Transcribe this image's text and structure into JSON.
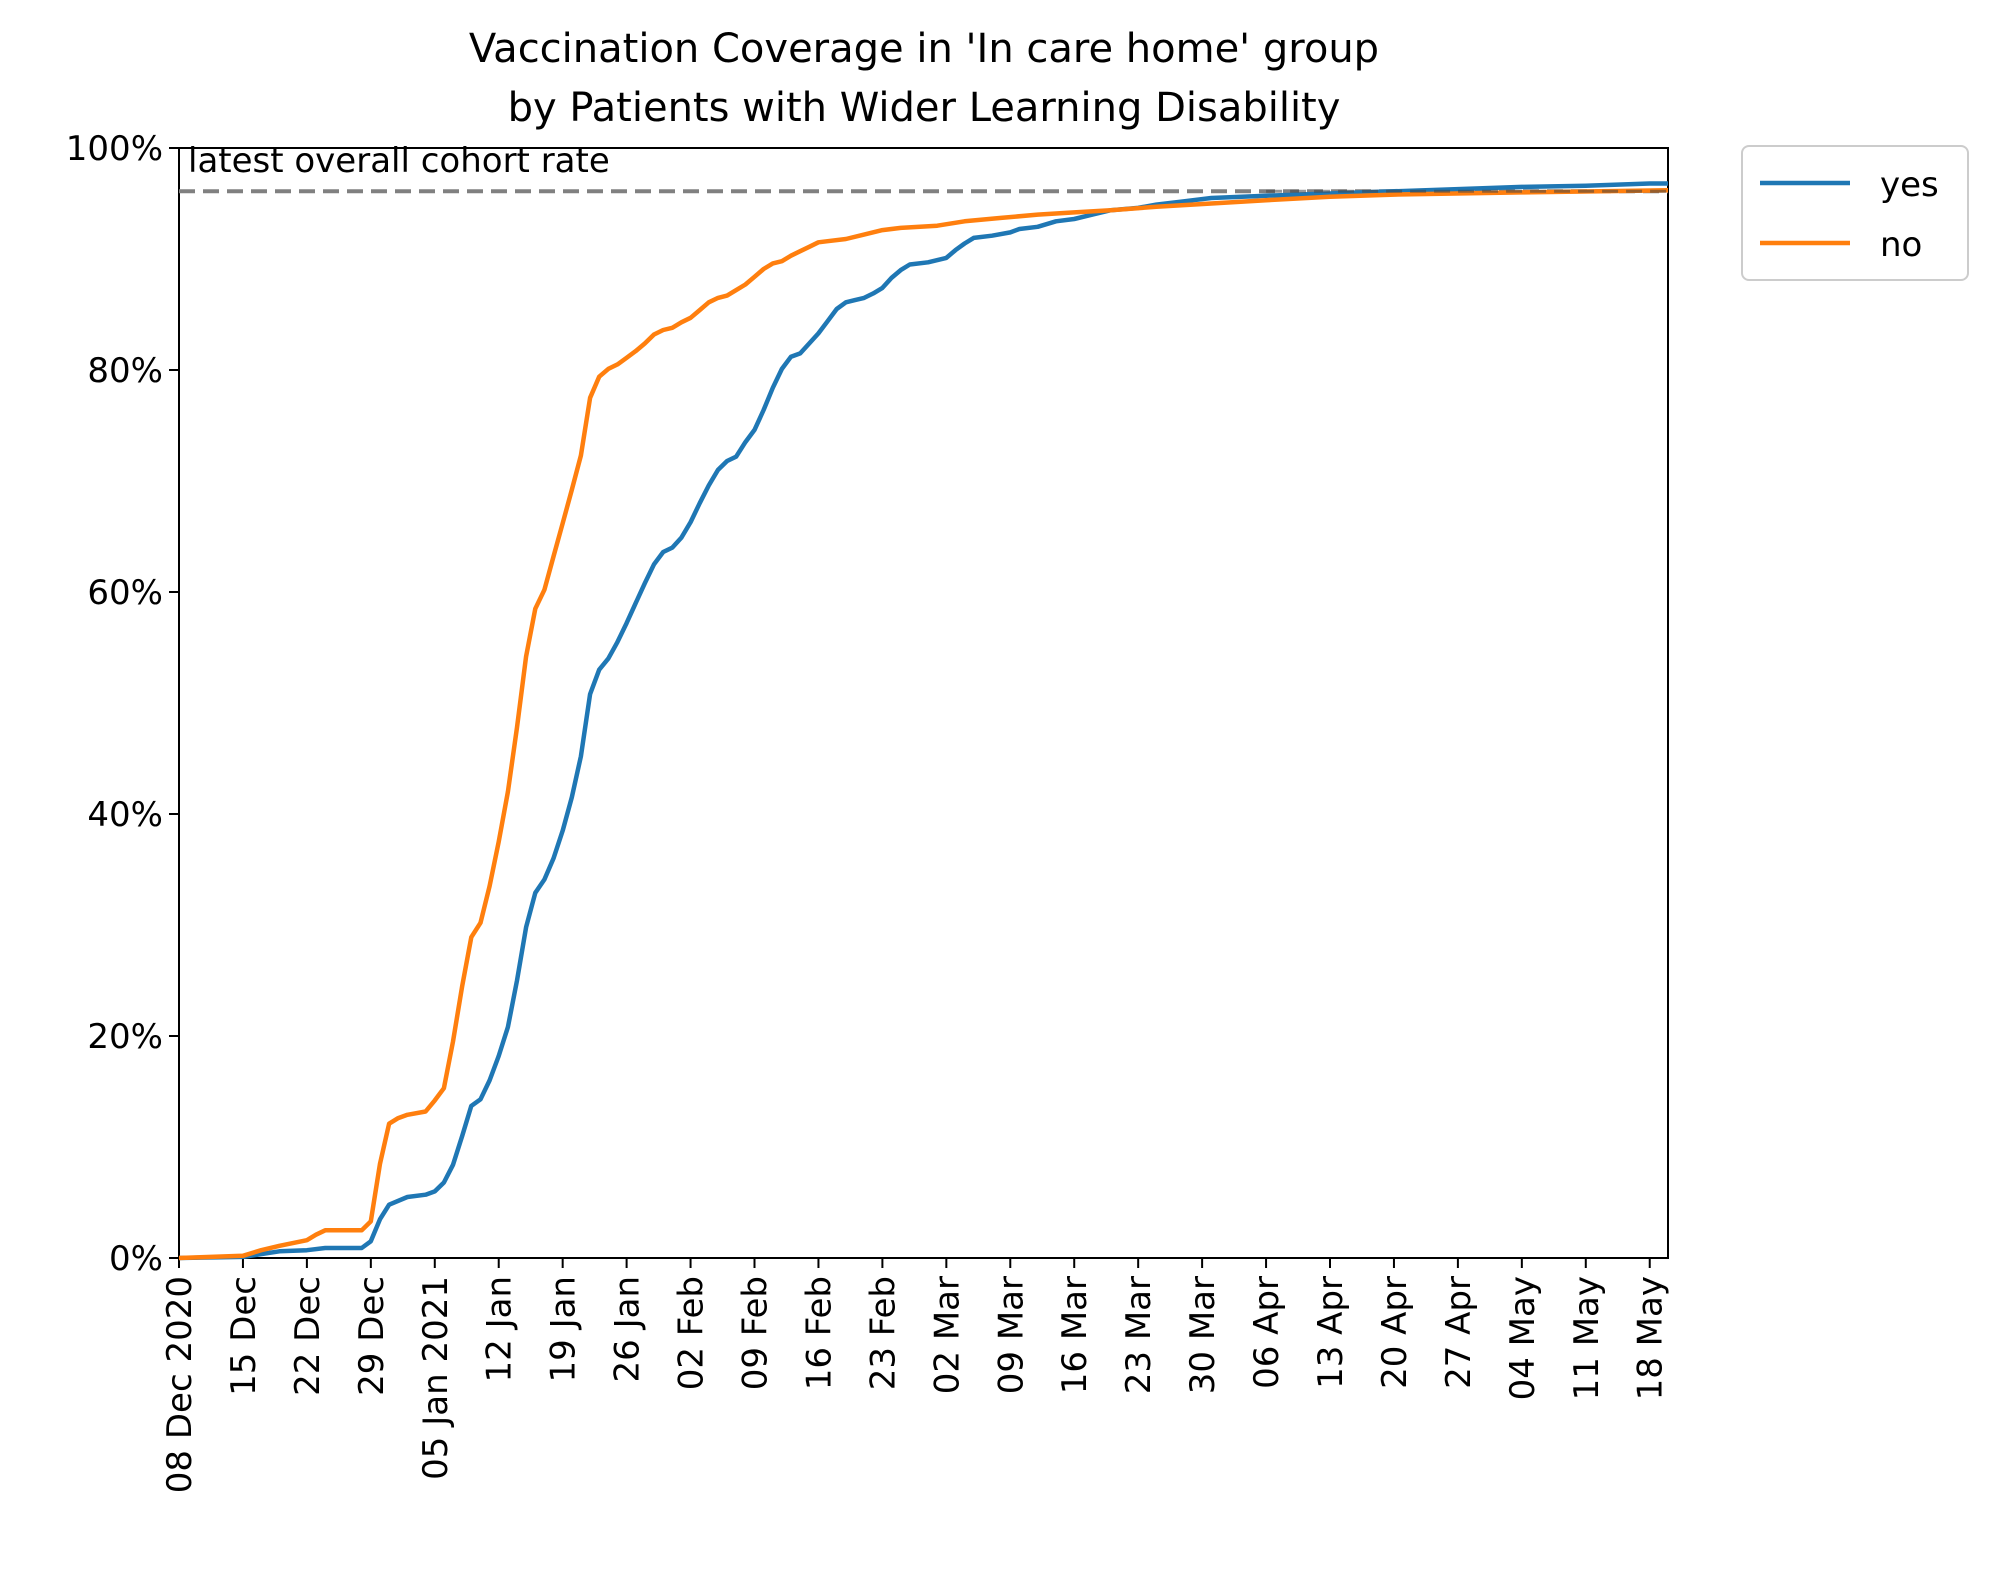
{
  "chart_data": {
    "type": "line",
    "title_lines": [
      "Vaccination Coverage in 'In care home' group",
      "by Patients with Wider Learning Disability"
    ],
    "x_start": "2020-12-08",
    "x_end": "2021-05-20",
    "x_tick_dates": [
      "2020-12-08",
      "2020-12-15",
      "2020-12-22",
      "2020-12-29",
      "2021-01-05",
      "2021-01-12",
      "2021-01-19",
      "2021-01-26",
      "2021-02-02",
      "2021-02-09",
      "2021-02-16",
      "2021-02-23",
      "2021-03-02",
      "2021-03-09",
      "2021-03-16",
      "2021-03-23",
      "2021-03-30",
      "2021-04-06",
      "2021-04-13",
      "2021-04-20",
      "2021-04-27",
      "2021-05-04",
      "2021-05-11",
      "2021-05-18"
    ],
    "x_tick_labels": [
      "08 Dec 2020",
      "15 Dec",
      "22 Dec",
      "29 Dec",
      "05 Jan 2021",
      "12 Jan",
      "19 Jan",
      "26 Jan",
      "02 Feb",
      "09 Feb",
      "16 Feb",
      "23 Feb",
      "02 Mar",
      "09 Mar",
      "16 Mar",
      "23 Mar",
      "30 Mar",
      "06 Apr",
      "13 Apr",
      "20 Apr",
      "27 Apr",
      "04 May",
      "11 May",
      "18 May"
    ],
    "ylim": [
      0,
      100
    ],
    "y_ticks": [
      0,
      20,
      40,
      60,
      80,
      100
    ],
    "y_tick_labels": [
      "0%",
      "20%",
      "40%",
      "60%",
      "80%",
      "100%"
    ],
    "reference_line": {
      "value": 96.1,
      "label": "latest overall cohort rate",
      "color": "#808080",
      "style": "dashed"
    },
    "legend": {
      "placement": "outside-top-right"
    },
    "series": [
      {
        "name": "yes",
        "color": "#1f77b4",
        "points": [
          [
            "2020-12-08",
            0
          ],
          [
            "2020-12-15",
            0.1
          ],
          [
            "2020-12-19",
            0.6
          ],
          [
            "2020-12-22",
            0.7
          ],
          [
            "2020-12-24",
            0.9
          ],
          [
            "2020-12-28",
            0.9
          ],
          [
            "2020-12-29",
            1.5
          ],
          [
            "2020-12-30",
            3.5
          ],
          [
            "2020-12-31",
            4.8
          ],
          [
            "2021-01-02",
            5.5
          ],
          [
            "2021-01-04",
            5.7
          ],
          [
            "2021-01-05",
            6.0
          ],
          [
            "2021-01-06",
            6.8
          ],
          [
            "2021-01-07",
            8.4
          ],
          [
            "2021-01-08",
            11.0
          ],
          [
            "2021-01-09",
            13.7
          ],
          [
            "2021-01-10",
            14.3
          ],
          [
            "2021-01-11",
            16.0
          ],
          [
            "2021-01-12",
            18.2
          ],
          [
            "2021-01-13",
            20.8
          ],
          [
            "2021-01-14",
            25.0
          ],
          [
            "2021-01-15",
            29.8
          ],
          [
            "2021-01-16",
            32.9
          ],
          [
            "2021-01-17",
            34.1
          ],
          [
            "2021-01-18",
            36.0
          ],
          [
            "2021-01-19",
            38.5
          ],
          [
            "2021-01-20",
            41.5
          ],
          [
            "2021-01-21",
            45.2
          ],
          [
            "2021-01-22",
            50.8
          ],
          [
            "2021-01-23",
            53.0
          ],
          [
            "2021-01-24",
            54.0
          ],
          [
            "2021-01-25",
            55.5
          ],
          [
            "2021-01-26",
            57.2
          ],
          [
            "2021-01-27",
            59.0
          ],
          [
            "2021-01-28",
            60.8
          ],
          [
            "2021-01-29",
            62.5
          ],
          [
            "2021-01-30",
            63.6
          ],
          [
            "2021-01-31",
            64.0
          ],
          [
            "2021-02-01",
            64.9
          ],
          [
            "2021-02-02",
            66.3
          ],
          [
            "2021-02-03",
            68.0
          ],
          [
            "2021-02-04",
            69.6
          ],
          [
            "2021-02-05",
            71.0
          ],
          [
            "2021-02-06",
            71.8
          ],
          [
            "2021-02-07",
            72.2
          ],
          [
            "2021-02-08",
            73.5
          ],
          [
            "2021-02-09",
            74.6
          ],
          [
            "2021-02-10",
            76.4
          ],
          [
            "2021-02-11",
            78.4
          ],
          [
            "2021-02-12",
            80.1
          ],
          [
            "2021-02-13",
            81.2
          ],
          [
            "2021-02-14",
            81.5
          ],
          [
            "2021-02-15",
            82.4
          ],
          [
            "2021-02-16",
            83.3
          ],
          [
            "2021-02-17",
            84.4
          ],
          [
            "2021-02-18",
            85.5
          ],
          [
            "2021-02-19",
            86.1
          ],
          [
            "2021-02-20",
            86.3
          ],
          [
            "2021-02-21",
            86.5
          ],
          [
            "2021-02-22",
            86.9
          ],
          [
            "2021-02-23",
            87.4
          ],
          [
            "2021-02-24",
            88.3
          ],
          [
            "2021-02-25",
            89.0
          ],
          [
            "2021-02-26",
            89.5
          ],
          [
            "2021-02-28",
            89.7
          ],
          [
            "2021-03-02",
            90.1
          ],
          [
            "2021-03-03",
            90.8
          ],
          [
            "2021-03-04",
            91.4
          ],
          [
            "2021-03-05",
            91.9
          ],
          [
            "2021-03-07",
            92.1
          ],
          [
            "2021-03-09",
            92.4
          ],
          [
            "2021-03-10",
            92.7
          ],
          [
            "2021-03-12",
            92.9
          ],
          [
            "2021-03-14",
            93.4
          ],
          [
            "2021-03-16",
            93.6
          ],
          [
            "2021-03-18",
            94.0
          ],
          [
            "2021-03-20",
            94.4
          ],
          [
            "2021-03-23",
            94.6
          ],
          [
            "2021-03-25",
            94.9
          ],
          [
            "2021-03-28",
            95.2
          ],
          [
            "2021-03-31",
            95.5
          ],
          [
            "2021-04-06",
            95.7
          ],
          [
            "2021-04-13",
            95.9
          ],
          [
            "2021-04-20",
            96.1
          ],
          [
            "2021-04-27",
            96.3
          ],
          [
            "2021-05-04",
            96.5
          ],
          [
            "2021-05-11",
            96.6
          ],
          [
            "2021-05-18",
            96.8
          ],
          [
            "2021-05-20",
            96.8
          ]
        ]
      },
      {
        "name": "no",
        "color": "#ff7f0e",
        "points": [
          [
            "2020-12-08",
            0
          ],
          [
            "2020-12-15",
            0.2
          ],
          [
            "2020-12-17",
            0.7
          ],
          [
            "2020-12-19",
            1.1
          ],
          [
            "2020-12-22",
            1.6
          ],
          [
            "2020-12-23",
            2.1
          ],
          [
            "2020-12-24",
            2.5
          ],
          [
            "2020-12-28",
            2.5
          ],
          [
            "2020-12-29",
            3.3
          ],
          [
            "2020-12-30",
            8.5
          ],
          [
            "2020-12-31",
            12.1
          ],
          [
            "2021-01-01",
            12.6
          ],
          [
            "2021-01-02",
            12.9
          ],
          [
            "2021-01-04",
            13.2
          ],
          [
            "2021-01-05",
            14.2
          ],
          [
            "2021-01-06",
            15.3
          ],
          [
            "2021-01-07",
            19.5
          ],
          [
            "2021-01-08",
            24.5
          ],
          [
            "2021-01-09",
            28.9
          ],
          [
            "2021-01-10",
            30.2
          ],
          [
            "2021-01-11",
            33.5
          ],
          [
            "2021-01-12",
            37.5
          ],
          [
            "2021-01-13",
            42.0
          ],
          [
            "2021-01-14",
            47.8
          ],
          [
            "2021-01-15",
            54.2
          ],
          [
            "2021-01-16",
            58.5
          ],
          [
            "2021-01-17",
            60.2
          ],
          [
            "2021-01-18",
            63.2
          ],
          [
            "2021-01-19",
            66.2
          ],
          [
            "2021-01-20",
            69.2
          ],
          [
            "2021-01-21",
            72.3
          ],
          [
            "2021-01-22",
            77.5
          ],
          [
            "2021-01-23",
            79.4
          ],
          [
            "2021-01-24",
            80.1
          ],
          [
            "2021-01-25",
            80.5
          ],
          [
            "2021-01-26",
            81.1
          ],
          [
            "2021-01-27",
            81.7
          ],
          [
            "2021-01-28",
            82.4
          ],
          [
            "2021-01-29",
            83.2
          ],
          [
            "2021-01-30",
            83.6
          ],
          [
            "2021-01-31",
            83.8
          ],
          [
            "2021-02-01",
            84.3
          ],
          [
            "2021-02-02",
            84.7
          ],
          [
            "2021-02-03",
            85.4
          ],
          [
            "2021-02-04",
            86.1
          ],
          [
            "2021-02-05",
            86.5
          ],
          [
            "2021-02-06",
            86.7
          ],
          [
            "2021-02-07",
            87.2
          ],
          [
            "2021-02-08",
            87.7
          ],
          [
            "2021-02-09",
            88.4
          ],
          [
            "2021-02-10",
            89.1
          ],
          [
            "2021-02-11",
            89.6
          ],
          [
            "2021-02-12",
            89.8
          ],
          [
            "2021-02-13",
            90.3
          ],
          [
            "2021-02-14",
            90.7
          ],
          [
            "2021-02-15",
            91.1
          ],
          [
            "2021-02-16",
            91.5
          ],
          [
            "2021-02-17",
            91.6
          ],
          [
            "2021-02-19",
            91.8
          ],
          [
            "2021-02-21",
            92.2
          ],
          [
            "2021-02-23",
            92.6
          ],
          [
            "2021-02-25",
            92.8
          ],
          [
            "2021-03-01",
            93.0
          ],
          [
            "2021-03-04",
            93.4
          ],
          [
            "2021-03-08",
            93.7
          ],
          [
            "2021-03-12",
            94.0
          ],
          [
            "2021-03-16",
            94.2
          ],
          [
            "2021-03-20",
            94.4
          ],
          [
            "2021-03-25",
            94.7
          ],
          [
            "2021-03-31",
            95.0
          ],
          [
            "2021-04-06",
            95.3
          ],
          [
            "2021-04-13",
            95.6
          ],
          [
            "2021-04-20",
            95.8
          ],
          [
            "2021-05-04",
            96.0
          ],
          [
            "2021-05-20",
            96.2
          ]
        ]
      }
    ]
  }
}
